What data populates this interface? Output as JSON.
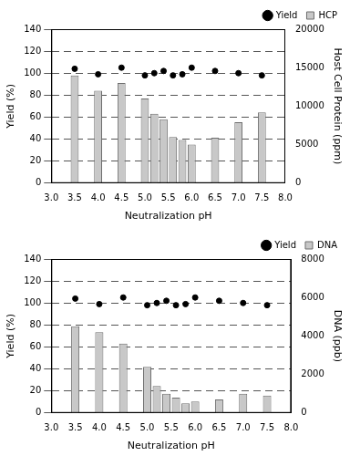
{
  "chart_data": [
    {
      "type": "bar",
      "xlabel": "Neutralization pH",
      "ylabel": "Yield (%)",
      "y2label": "Host Cell Protein (ppm)",
      "x": [
        3.5,
        4.0,
        4.5,
        5.0,
        5.2,
        5.4,
        5.6,
        5.8,
        6.0,
        6.5,
        7.0,
        7.5
      ],
      "series": [
        {
          "name": "Yield",
          "type": "scatter",
          "marker": "circle",
          "color": "#000000",
          "values": [
            104,
            99,
            105,
            98,
            100,
            102,
            98,
            99,
            105,
            102,
            100,
            98
          ]
        },
        {
          "name": "HCP",
          "type": "bar",
          "axis": "y2",
          "color": "#c8c8c8",
          "values": [
            14000,
            12000,
            13000,
            11000,
            9000,
            8300,
            6000,
            5600,
            5000,
            5900,
            7900,
            9200
          ]
        }
      ],
      "xlim": [
        3,
        8
      ],
      "xticks": [
        {
          "value": 3,
          "label": "3.0"
        },
        3.5,
        {
          "value": 4,
          "label": "4.0"
        },
        4.5,
        {
          "value": 5,
          "label": "5.0"
        },
        5.5,
        {
          "value": 6,
          "label": "6.0"
        },
        6.5,
        {
          "value": 7,
          "label": "7.0"
        },
        7.5,
        {
          "value": 8,
          "label": "8.0"
        }
      ],
      "ylim": [
        0,
        140
      ],
      "yticks": [
        0,
        20,
        40,
        60,
        80,
        100,
        120,
        140
      ],
      "y2lim": [
        0,
        20000
      ],
      "y2ticks": [
        0,
        5000,
        10000,
        15000,
        20000
      ],
      "grid": true,
      "legend": "upper right"
    },
    {
      "type": "bar",
      "xlabel": "Neutralization pH",
      "ylabel": "Yield (%)",
      "y2label": "DNA (ppb)",
      "x": [
        3.5,
        4.0,
        4.5,
        5.0,
        5.2,
        5.4,
        5.6,
        5.8,
        6.0,
        6.5,
        7.0,
        7.5
      ],
      "series": [
        {
          "name": "Yield",
          "type": "scatter",
          "marker": "circle",
          "color": "#000000",
          "values": [
            104,
            99,
            105,
            98,
            100,
            102,
            98,
            99,
            105,
            102,
            100,
            98
          ]
        },
        {
          "name": "DNA",
          "type": "bar",
          "axis": "y2",
          "color": "#c8c8c8",
          "values": [
            4500,
            4200,
            3600,
            2400,
            1400,
            1000,
            800,
            500,
            600,
            700,
            1000,
            900
          ]
        }
      ],
      "xlim": [
        3,
        8
      ],
      "xticks": [
        {
          "value": 3,
          "label": "3.0"
        },
        3.5,
        {
          "value": 4,
          "label": "4.0"
        },
        4.5,
        {
          "value": 5,
          "label": "5.0"
        },
        5.5,
        {
          "value": 6,
          "label": "6.0"
        },
        6.5,
        {
          "value": 7,
          "label": "7.0"
        },
        7.5,
        {
          "value": 8,
          "label": "8.0"
        }
      ],
      "ylim": [
        0,
        140
      ],
      "yticks": [
        0,
        20,
        40,
        60,
        80,
        100,
        120,
        140
      ],
      "y2lim": [
        0,
        8000
      ],
      "y2ticks": [
        0,
        2000,
        4000,
        6000,
        8000
      ],
      "grid": true,
      "legend": "upper right"
    }
  ]
}
